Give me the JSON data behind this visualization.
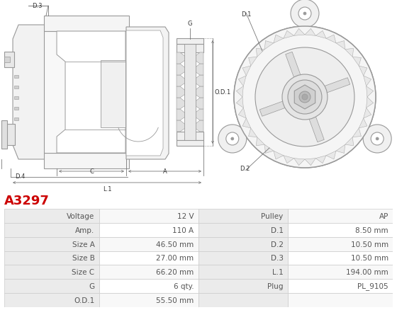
{
  "title": "A3297",
  "title_color": "#cc0000",
  "table_border_color": "#cccccc",
  "left_col_labels": [
    "Voltage",
    "Amp.",
    "Size A",
    "Size B",
    "Size C",
    "G",
    "O.D.1"
  ],
  "left_col_values": [
    "12 V",
    "110 A",
    "46.50 mm",
    "27.00 mm",
    "66.20 mm",
    "6 qty.",
    "55.50 mm"
  ],
  "right_col_labels": [
    "Pulley",
    "D.1",
    "D.2",
    "D.3",
    "L.1",
    "Plug",
    ""
  ],
  "right_col_values": [
    "AP",
    "8.50 mm",
    "10.50 mm",
    "10.50 mm",
    "194.00 mm",
    "PL_9105",
    ""
  ],
  "bg_color": "#ffffff",
  "text_color": "#555555",
  "lc": "#999999",
  "dim_color": "#777777",
  "font_size_table": 7.5,
  "font_size_title": 13
}
